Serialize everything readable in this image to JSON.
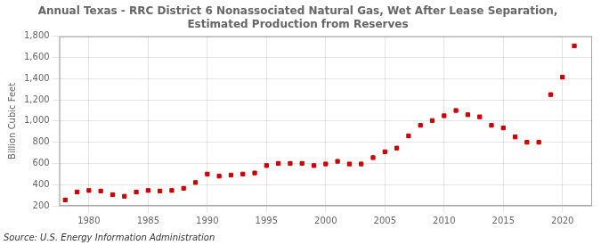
{
  "chart_data": {
    "type": "scatter",
    "title": "Annual Texas - RRC District 6 Nonassociated Natural Gas, Wet After Lease Separation,\nEstimated Production from Reserves",
    "ylabel": "Billion Cubic Feet",
    "annotations": [
      "Source: U.S. Energy Information Administration"
    ],
    "x": [
      1978,
      1979,
      1980,
      1981,
      1982,
      1983,
      1984,
      1985,
      1986,
      1987,
      1988,
      1989,
      1990,
      1991,
      1992,
      1993,
      1994,
      1995,
      1996,
      1997,
      1998,
      1999,
      2000,
      2001,
      2002,
      2003,
      2004,
      2005,
      2006,
      2007,
      2008,
      2009,
      2010,
      2011,
      2012,
      2013,
      2014,
      2015,
      2016,
      2017,
      2018,
      2019,
      2020,
      2021
    ],
    "values": [
      255,
      330,
      345,
      340,
      305,
      290,
      330,
      345,
      340,
      345,
      365,
      420,
      500,
      480,
      490,
      500,
      510,
      580,
      600,
      600,
      600,
      580,
      595,
      620,
      595,
      595,
      655,
      710,
      745,
      860,
      960,
      1005,
      1050,
      1100,
      1060,
      1040,
      960,
      935,
      850,
      800,
      800,
      1250,
      1415,
      1710
    ],
    "color": "#cc0000",
    "marker": "square",
    "xlim": [
      1977.5,
      2022.5
    ],
    "xticks": [
      1980,
      1985,
      1990,
      1995,
      2000,
      2005,
      2010,
      2015,
      2020
    ],
    "ylim": [
      200,
      1800
    ],
    "yticks": [
      200,
      400,
      600,
      800,
      {
        "value": 1000,
        "label": "1,000"
      },
      {
        "value": 1200,
        "label": "1,200"
      },
      {
        "value": 1400,
        "label": "1,400"
      },
      {
        "value": 1600,
        "label": "1,600"
      },
      {
        "value": 1800,
        "label": "1,800"
      }
    ],
    "grid": true
  }
}
